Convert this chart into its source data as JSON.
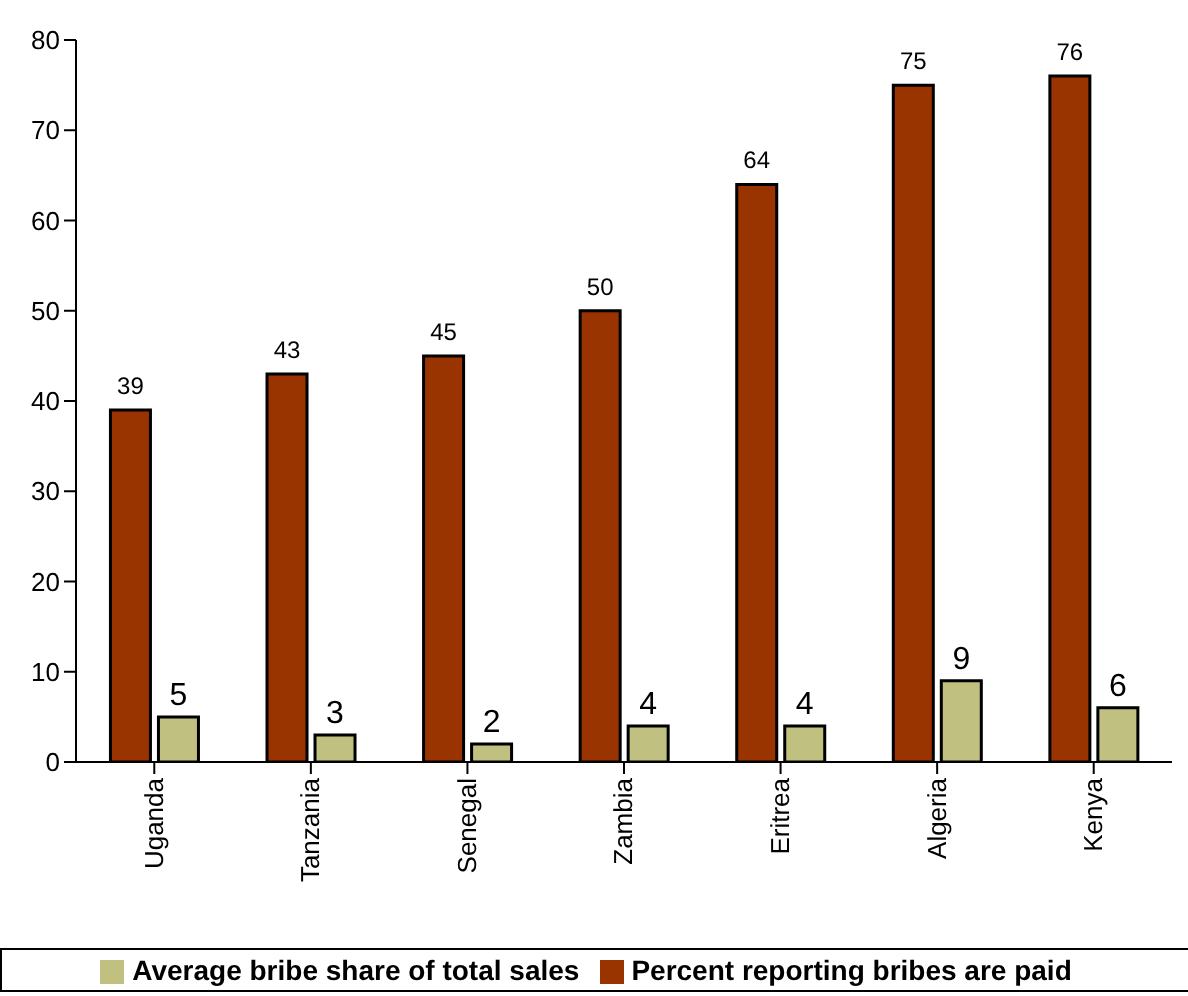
{
  "chart_data": {
    "type": "bar",
    "categories": [
      "Uganda",
      "Tanzania",
      "Senegal",
      "Zambia",
      "Eritrea",
      "Algeria",
      "Kenya"
    ],
    "series": [
      {
        "name": "Percent reporting bribes are paid",
        "color": "#993300",
        "values": [
          39,
          43,
          45,
          50,
          64,
          75,
          76
        ]
      },
      {
        "name": "Average bribe share of total sales",
        "color": "#c0c080",
        "values": [
          5,
          3,
          2,
          4,
          4,
          9,
          6
        ]
      }
    ],
    "ylim": [
      0,
      80
    ],
    "yticks": [
      0,
      10,
      20,
      30,
      40,
      50,
      60,
      70,
      80
    ],
    "grid": false,
    "legend": "bottom",
    "data_labels": true
  }
}
